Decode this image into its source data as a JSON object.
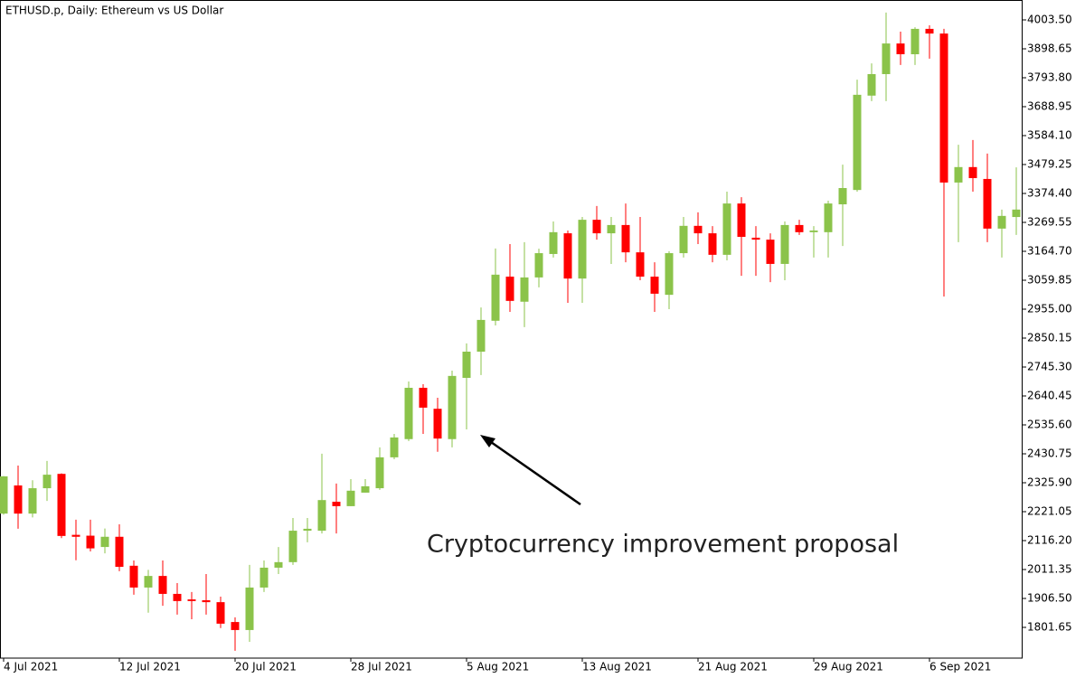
{
  "chart_data": {
    "type": "candlestick",
    "title": "ETHUSD.p, Daily:  Ethereum vs US Dollar",
    "annotation": "Cryptocurrency improvement proposal",
    "categories": [
      "4 Jul 2021",
      null,
      null,
      null,
      null,
      null,
      null,
      null,
      "12 Jul 2021",
      null,
      null,
      null,
      null,
      null,
      null,
      null,
      "20 Jul 2021",
      null,
      null,
      null,
      null,
      null,
      null,
      null,
      "28 Jul 2021",
      null,
      null,
      null,
      null,
      null,
      null,
      null,
      "5 Aug 2021",
      null,
      null,
      null,
      null,
      null,
      null,
      null,
      "13 Aug 2021",
      null,
      null,
      null,
      null,
      null,
      null,
      null,
      "21 Aug 2021",
      null,
      null,
      null,
      null,
      null,
      null,
      null,
      "29 Aug 2021",
      null,
      null,
      null,
      null,
      null,
      null,
      null,
      "6 Sep 2021",
      null,
      null,
      null,
      null,
      null,
      null
    ],
    "open": [
      2214,
      2316,
      2214,
      2306,
      2358,
      2137,
      2134,
      2093,
      2130,
      2025,
      1946,
      1988,
      1923,
      1903,
      1900,
      1893,
      1821,
      1792,
      1946,
      2018,
      2038,
      2152,
      2152,
      2257,
      2241,
      2290,
      2306,
      2418,
      2484,
      2670,
      2594,
      2484,
      2706,
      2801,
      2913,
      3073,
      2982,
      3070,
      3155,
      3230,
      3066,
      3279,
      3230,
      3260,
      3161,
      3073,
      3007,
      3158,
      3257,
      3230,
      3152,
      3338,
      3214,
      3207,
      3119,
      3260,
      3234,
      3234,
      3335,
      3387,
      3729,
      3807,
      3918,
      3879,
      3971,
      3954,
      3414,
      3470,
      3427,
      3247,
      3289
    ],
    "high": [
      2350,
      2388,
      2335,
      2405,
      2360,
      2192,
      2192,
      2160,
      2175,
      2044,
      2010,
      2044,
      1962,
      1930,
      1995,
      1913,
      1838,
      2028,
      2044,
      2093,
      2198,
      2198,
      2431,
      2323,
      2339,
      2339,
      2454,
      2503,
      2693,
      2683,
      2634,
      2732,
      2831,
      2961,
      3175,
      3191,
      3198,
      3174,
      3273,
      3240,
      3289,
      3329,
      3289,
      3338,
      3289,
      3125,
      3165,
      3289,
      3306,
      3256,
      3381,
      3361,
      3256,
      3230,
      3273,
      3279,
      3256,
      3348,
      3479,
      3787,
      3846,
      4030,
      3961,
      3977,
      3984,
      3971,
      3551,
      3568,
      3519,
      3316,
      3469
    ],
    "low": [
      2210,
      2159,
      2200,
      2260,
      2125,
      2045,
      2077,
      2070,
      2005,
      1920,
      1855,
      1880,
      1848,
      1831,
      1848,
      1799,
      1717,
      1749,
      1930,
      1995,
      2028,
      2110,
      2142,
      2142,
      2241,
      2290,
      2300,
      2411,
      2477,
      2503,
      2438,
      2454,
      2519,
      2716,
      2896,
      2945,
      2890,
      3034,
      3142,
      2978,
      2978,
      3207,
      3119,
      3125,
      3060,
      2945,
      2955,
      3142,
      3191,
      3125,
      3132,
      3076,
      3076,
      3053,
      3060,
      3224,
      3142,
      3142,
      3184,
      3381,
      3709,
      3709,
      3840,
      3840,
      3863,
      3001,
      3198,
      3381,
      3198,
      3142,
      3224
    ],
    "close": [
      2349,
      2214,
      2306,
      2355,
      2133,
      2130,
      2088,
      2130,
      2021,
      1946,
      1988,
      1923,
      1897,
      1897,
      1893,
      1815,
      1792,
      1946,
      2018,
      2038,
      2152,
      2159,
      2263,
      2241,
      2297,
      2313,
      2418,
      2490,
      2670,
      2598,
      2486,
      2713,
      2801,
      2916,
      3080,
      2985,
      3070,
      3158,
      3234,
      3066,
      3279,
      3230,
      3260,
      3161,
      3073,
      3011,
      3158,
      3257,
      3230,
      3152,
      3338,
      3217,
      3207,
      3119,
      3260,
      3234,
      3240,
      3338,
      3394,
      3732,
      3807,
      3918,
      3879,
      3971,
      3954,
      3414,
      3470,
      3430,
      3247,
      3293,
      3316
    ],
    "up_color": "#8bc34a",
    "down_color": "#ff0000",
    "ylim": [
      1690.2,
      4075.6
    ],
    "yticks": [
      {
        "value": 4003.5,
        "label": "4003.50"
      },
      3898.65,
      {
        "value": 3793.8,
        "label": "3793.80"
      },
      3688.95,
      {
        "value": 3584.1,
        "label": "3584.10"
      },
      3479.25,
      {
        "value": 3374.4,
        "label": "3374.40"
      },
      3269.55,
      {
        "value": 3164.7,
        "label": "3164.70"
      },
      3059.85,
      {
        "value": 2955,
        "label": "2955.00"
      },
      2850.15,
      {
        "value": 2745.3,
        "label": "2745.30"
      },
      2640.45,
      {
        "value": 2535.6,
        "label": "2535.60"
      },
      2430.75,
      {
        "value": 2325.9,
        "label": "2325.90"
      },
      2221.05,
      {
        "value": 2116.2,
        "label": "2116.20"
      },
      2011.35,
      {
        "value": 1906.5,
        "label": "1906.50"
      },
      1801.65
    ]
  }
}
